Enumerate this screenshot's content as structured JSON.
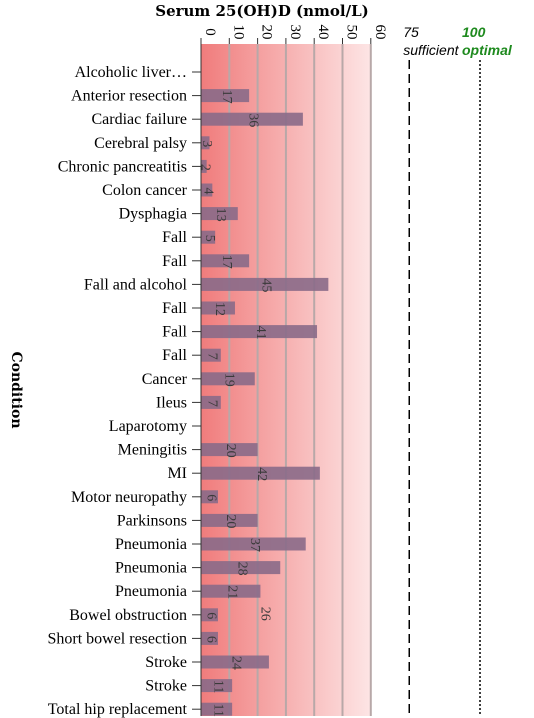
{
  "chart_data": {
    "type": "bar",
    "orientation": "horizontal",
    "title": "Serum 25(OH)D  (nmol/L)",
    "ylabel": "Condition",
    "xlim": [
      0,
      60
    ],
    "x_ticks": [
      0,
      10,
      20,
      30,
      40,
      50,
      60
    ],
    "grid": true,
    "categories": [
      "Alcoholic liver…",
      "Anterior resection",
      "Cardiac failure",
      "Cerebral palsy",
      "Chronic pancreatitis",
      "Colon cancer",
      "Dysphagia",
      "Fall",
      "Fall",
      "Fall and alcohol",
      "Fall",
      "Fall",
      "Fall",
      "Cancer",
      "Ileus",
      "Laparotomy",
      "Meningitis",
      "MI",
      "Motor neuropathy",
      "Parkinsons",
      "Pneumonia",
      "Pneumonia",
      "Pneumonia",
      "Bowel obstruction",
      "Short bowel resection",
      "Stroke",
      "Stroke",
      "Total hip replacement"
    ],
    "values": [
      0,
      17,
      36,
      3,
      2,
      4,
      13,
      5,
      17,
      45,
      12,
      41,
      7,
      19,
      7,
      0,
      20,
      42,
      6,
      20,
      37,
      28,
      21,
      6,
      6,
      24,
      11,
      11
    ],
    "data_labels": [
      "",
      "17",
      "36",
      "3",
      "2",
      "4",
      "13",
      "5",
      "17",
      "45",
      "12",
      "41",
      "7",
      "19",
      "7",
      "",
      "20",
      "42",
      "6",
      "20",
      "37",
      "28",
      "21",
      "6",
      "6",
      "24",
      "11",
      "11"
    ],
    "extra_labels": [
      {
        "category_index": 23,
        "text": "26",
        "value": 26
      }
    ],
    "reference_lines": [
      {
        "value": 75,
        "label_value": "75",
        "label_text": "sufficient",
        "style": "dashed",
        "color": "#000000"
      },
      {
        "value": 100,
        "label_value": "100",
        "label_text": "optimal",
        "style": "dotted",
        "color": "#1e8a1e"
      }
    ],
    "colors": {
      "bar": "#8a6a88",
      "background_start": "#f07c7c",
      "background_end": "#fde5e5",
      "grid": "#b8a8a8"
    }
  }
}
